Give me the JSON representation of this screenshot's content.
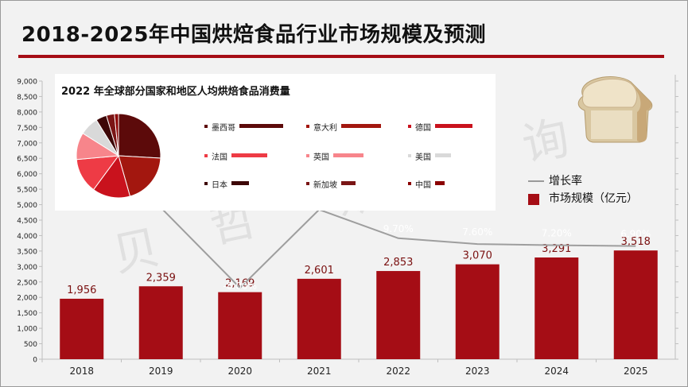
{
  "title": "2018-2025年中国烘焙食品行业市场规模及预测",
  "legend": {
    "growth": "增长率",
    "market": "市场规模（亿元）"
  },
  "watermark": [
    "贝",
    "哲",
    "斯",
    "咨",
    "询"
  ],
  "colors": {
    "bar": "#a50d15",
    "line": "#9e9e9e",
    "accent": "#a50d15"
  },
  "icon": "bread-icon",
  "chart_data": [
    {
      "type": "bar",
      "title": "2018-2025年中国烘焙食品行业市场规模及预测",
      "categories": [
        "2018",
        "2019",
        "2020",
        "2021",
        "2022",
        "2023",
        "2024",
        "2025"
      ],
      "series": [
        {
          "name": "市场规模（亿元）",
          "type": "bar",
          "values": [
            1956,
            2359,
            2169,
            2601,
            2853,
            3070,
            3291,
            3518
          ],
          "labels": [
            "1,956",
            "2,359",
            "2,169",
            "2,601",
            "2,853",
            "3,070",
            "3,291",
            "3,518"
          ]
        },
        {
          "name": "增长率",
          "type": "line",
          "values": [
            null,
            20.6,
            -8.0,
            19.9,
            9.7,
            7.6,
            7.2,
            6.9
          ],
          "labels": [
            "",
            "20.60%",
            "-8.00%",
            "19.90%",
            "9.70%",
            "7.60%",
            "7.20%",
            "6.90%"
          ]
        }
      ],
      "ylim": [
        0,
        9000
      ],
      "yticks": [
        "0",
        "500",
        "1,000",
        "1,500",
        "2,000",
        "2,500",
        "3,000",
        "3,500",
        "4,000",
        "4,500",
        "5,000",
        "5,500",
        "6,000",
        "6,500",
        "7,000",
        "7,500",
        "8,000",
        "8,500",
        "9,000"
      ],
      "legend_position": "right"
    },
    {
      "type": "pie",
      "title": "2022 年全球部分国家和地区人均烘焙食品消费量",
      "categories": [
        "墨西哥",
        "意大利",
        "德国",
        "法国",
        "英国",
        "美国",
        "日本",
        "新加坡",
        "中国"
      ],
      "values": [
        25,
        19,
        14,
        13,
        10,
        7,
        4,
        3,
        1.5
      ],
      "colors": [
        "#5c0a0a",
        "#a3170f",
        "#c9121d",
        "#ee3b45",
        "#f7858b",
        "#d9d9d9",
        "#3d0707",
        "#7a1515",
        "#8b0000"
      ],
      "legend_position": "right"
    }
  ]
}
